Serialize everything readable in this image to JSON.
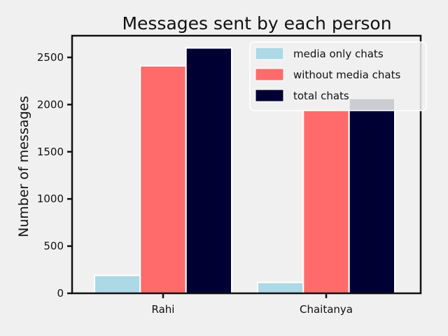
{
  "chart_data": {
    "type": "bar",
    "title": "Messages sent by each person",
    "xlabel": "",
    "ylabel": "Number of messages",
    "categories": [
      "Rahi",
      "Chaitanya"
    ],
    "series": [
      {
        "name": "media only chats",
        "values": [
          190,
          115
        ],
        "color": "#add8e6"
      },
      {
        "name": "without media chats",
        "values": [
          2410,
          1950
        ],
        "color": "#ff6b6b"
      },
      {
        "name": "total chats",
        "values": [
          2600,
          2065
        ],
        "color": "#000033"
      }
    ],
    "ylim": [
      0,
      2730
    ],
    "yticks": [
      0,
      500,
      1000,
      1500,
      2000,
      2500
    ],
    "grid": false,
    "legend_position": "top-right",
    "colors": {
      "background": "#f0f0f0",
      "axes": "#111111",
      "legend_bg": "#f0f0f0"
    }
  }
}
